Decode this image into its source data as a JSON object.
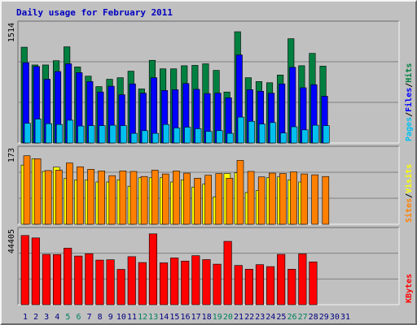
{
  "chart_data": [
    {
      "type": "bar",
      "title": "Daily usage for February 2011",
      "ymax_label": "1514",
      "legend": [
        "Pages",
        "Files",
        "Hits"
      ],
      "legend_colors": [
        "#00c0f0",
        "#0000ff",
        "#008040"
      ],
      "categories": [
        "1",
        "2",
        "3",
        "4",
        "5",
        "6",
        "7",
        "8",
        "9",
        "10",
        "11",
        "12",
        "13",
        "14",
        "15",
        "16",
        "17",
        "18",
        "19",
        "20",
        "21",
        "22",
        "23",
        "24",
        "25",
        "26",
        "27",
        "28",
        "29",
        "30",
        "31"
      ],
      "series": [
        {
          "name": "Hits",
          "color": "#008040",
          "values": [
            1240,
            1010,
            1010,
            1065,
            1245,
            985,
            865,
            730,
            825,
            845,
            930,
            700,
            1070,
            960,
            960,
            1000,
            1005,
            1025,
            940,
            660,
            1440,
            845,
            795,
            780,
            880,
            1350,
            1000,
            1160,
            995,
            0,
            0
          ]
        },
        {
          "name": "Files",
          "color": "#0000ff",
          "values": [
            1040,
            990,
            825,
            925,
            1025,
            910,
            795,
            660,
            735,
            625,
            765,
            645,
            845,
            680,
            690,
            770,
            695,
            640,
            645,
            585,
            1140,
            690,
            670,
            645,
            765,
            980,
            715,
            755,
            605,
            0,
            0
          ]
        },
        {
          "name": "Pages",
          "color": "#00c0f0",
          "values": [
            255,
            310,
            250,
            240,
            295,
            220,
            225,
            225,
            230,
            225,
            125,
            160,
            125,
            240,
            195,
            205,
            185,
            150,
            160,
            125,
            335,
            280,
            245,
            265,
            130,
            210,
            170,
            230,
            225,
            0,
            0
          ]
        }
      ],
      "ylim": [
        0,
        1514
      ]
    },
    {
      "type": "bar",
      "ymax_label": "173",
      "legend": [
        "Sites",
        "Visits"
      ],
      "legend_colors": [
        "#ff8000",
        "#ffff00"
      ],
      "categories": [
        "1",
        "2",
        "3",
        "4",
        "5",
        "6",
        "7",
        "8",
        "9",
        "10",
        "11",
        "12",
        "13",
        "14",
        "15",
        "16",
        "17",
        "18",
        "19",
        "20",
        "21",
        "22",
        "23",
        "24",
        "25",
        "26",
        "27",
        "28",
        "29",
        "30",
        "31"
      ],
      "series": [
        {
          "name": "Visits",
          "color": "#ffff00",
          "values": [
            140,
            155,
            125,
            135,
            108,
            105,
            105,
            100,
            100,
            105,
            90,
            110,
            110,
            110,
            100,
            105,
            88,
            95,
            65,
            120,
            122,
            75,
            80,
            110,
            112,
            105,
            100,
            0,
            0,
            0,
            0
          ]
        },
        {
          "name": "Sites",
          "color": "#ff8000",
          "values": [
            162,
            155,
            127,
            128,
            145,
            136,
            130,
            126,
            115,
            126,
            125,
            113,
            128,
            119,
            126,
            121,
            109,
            116,
            120,
            109,
            151,
            125,
            112,
            121,
            120,
            124,
            119,
            117,
            113,
            0,
            0
          ]
        }
      ],
      "ylim": [
        0,
        173
      ]
    },
    {
      "type": "bar",
      "ymax_label": "44405",
      "legend": [
        "KBytes"
      ],
      "legend_colors": [
        "#ff0000"
      ],
      "categories": [
        "1",
        "2",
        "3",
        "4",
        "5",
        "6",
        "7",
        "8",
        "9",
        "10",
        "11",
        "12",
        "13",
        "14",
        "15",
        "16",
        "17",
        "18",
        "19",
        "20",
        "21",
        "22",
        "23",
        "24",
        "25",
        "26",
        "27",
        "28",
        "29",
        "30",
        "31"
      ],
      "series": [
        {
          "name": "KBytes",
          "color": "#ff0000",
          "values": [
            42500,
            41000,
            30900,
            30800,
            34700,
            29900,
            31300,
            27400,
            27600,
            21700,
            29500,
            25900,
            43500,
            25700,
            28700,
            26800,
            30100,
            27700,
            24900,
            38900,
            24100,
            21800,
            24600,
            23400,
            30900,
            21800,
            31200,
            26300,
            0,
            0,
            0
          ]
        }
      ],
      "ylim": [
        0,
        44405
      ]
    }
  ],
  "x_label_colors": {
    "default": "#000080",
    "weekend": "#00805c"
  },
  "weekend_days": [
    "5",
    "6",
    "12",
    "13",
    "19",
    "20",
    "26",
    "27"
  ]
}
